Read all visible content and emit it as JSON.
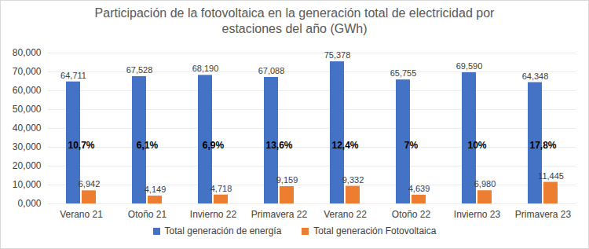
{
  "chart_data": {
    "type": "bar",
    "title": "Participación de la fotovoltaica en la generación total de electricidad por estaciones del año (GWh)",
    "categories": [
      "Verano 21",
      "Otoño 21",
      "Invierno 22",
      "Primavera 22",
      "Verano 22",
      "Otoño 22",
      "Invierno 23",
      "Primavera 23"
    ],
    "series": [
      {
        "name": "Total generación de energía",
        "color": "#4472c4",
        "values": [
          64711,
          67528,
          68190,
          67088,
          75378,
          65755,
          69590,
          64348
        ],
        "value_labels": [
          "64,711",
          "67,528",
          "68,190",
          "67,088",
          "75,378",
          "65,755",
          "69,590",
          "64,348"
        ]
      },
      {
        "name": "Total generación Fotovoltaica",
        "color": "#ed7d31",
        "values": [
          6942,
          4149,
          4718,
          9159,
          9332,
          4639,
          6980,
          11445
        ],
        "value_labels": [
          "6,942",
          "4,149",
          "4,718",
          "9,159",
          "9,332",
          "4,639",
          "6,980",
          "11,445"
        ]
      }
    ],
    "annotations": [
      "10,7%",
      "6,1%",
      "6,9%",
      "13,6%",
      "12,4%",
      "7%",
      "10%",
      "17,8%"
    ],
    "ylim": [
      0,
      80000
    ],
    "yticks": [
      {
        "value": 0,
        "label": "0,000"
      },
      {
        "value": 10000,
        "label": "10,000"
      },
      {
        "value": 20000,
        "label": "20,000"
      },
      {
        "value": 30000,
        "label": "30,000"
      },
      {
        "value": 40000,
        "label": "40,000"
      },
      {
        "value": 50000,
        "label": "50,000"
      },
      {
        "value": 60000,
        "label": "60,000"
      },
      {
        "value": 70000,
        "label": "70,000"
      },
      {
        "value": 80000,
        "label": "80,000"
      }
    ],
    "grid": true,
    "legend": "bottom",
    "data_labels": true
  }
}
